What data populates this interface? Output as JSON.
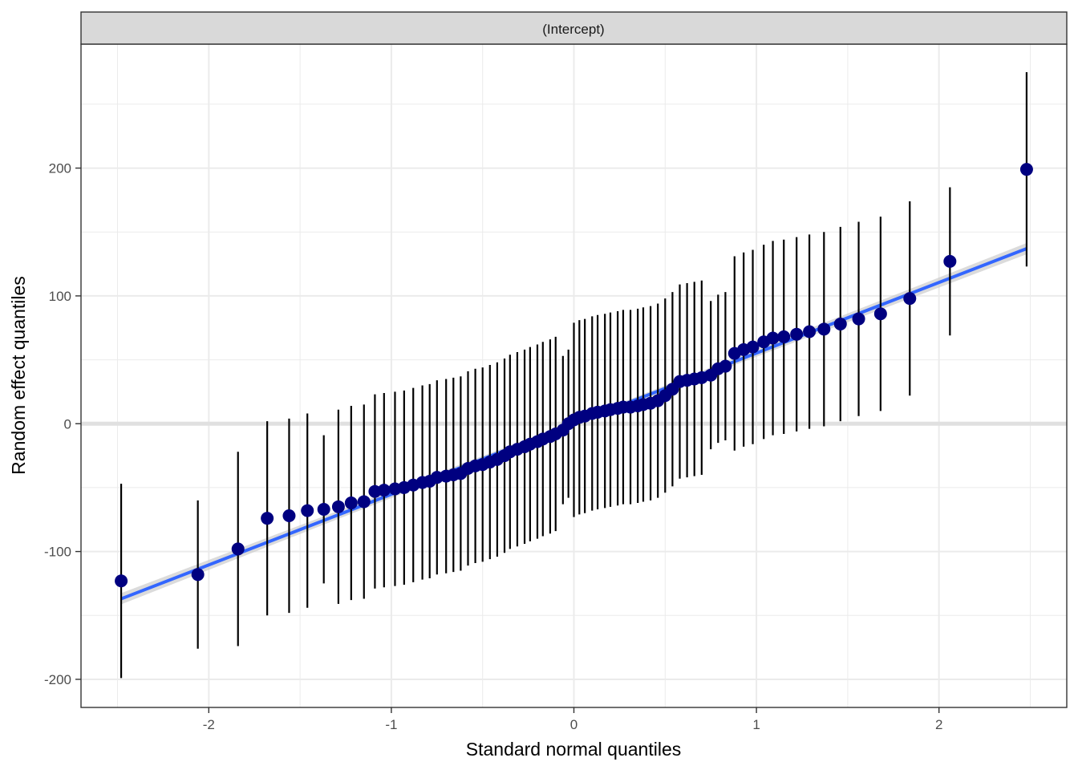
{
  "chart_data": {
    "type": "scatter",
    "facet_label": "(Intercept)",
    "xlabel": "Standard normal quantiles",
    "ylabel": "Random effect quantiles",
    "xlim": [
      -2.7,
      2.7
    ],
    "ylim": [
      -222,
      297
    ],
    "x_ticks": [
      -2,
      -1,
      0,
      1,
      2
    ],
    "x_tick_labels": [
      "-2",
      "-1",
      "0",
      "1",
      "2"
    ],
    "y_ticks": [
      -200,
      -100,
      0,
      100,
      200
    ],
    "y_tick_labels": [
      "-200",
      "-100",
      "0",
      "100",
      "200"
    ],
    "grid": true,
    "reference_hline": 0,
    "fit_line": {
      "x": [
        -2.48,
        2.48
      ],
      "y": [
        -137,
        137
      ]
    },
    "colors": {
      "points": "#000080",
      "fit": "#3366FF",
      "band": "#CCCCCC",
      "bars": "#000000",
      "strip": "#D9D9D9"
    },
    "series": [
      {
        "x": [
          -2.48,
          -2.06,
          -1.84,
          -1.68,
          -1.56,
          -1.46,
          -1.37,
          -1.29,
          -1.22,
          -1.15,
          -1.09,
          -1.04,
          -0.98,
          -0.93,
          -0.88,
          -0.83,
          -0.79,
          -0.75,
          -0.7,
          -0.66,
          -0.62,
          -0.58,
          -0.54,
          -0.5,
          -0.46,
          -0.42,
          -0.38,
          -0.35,
          -0.31,
          -0.27,
          -0.24,
          -0.2,
          -0.17,
          -0.13,
          -0.1,
          -0.06,
          -0.03,
          0.0,
          0.03,
          0.06,
          0.1,
          0.13,
          0.17,
          0.2,
          0.24,
          0.27,
          0.31,
          0.35,
          0.38,
          0.42,
          0.46,
          0.5,
          0.54,
          0.58,
          0.62,
          0.66,
          0.7,
          0.75,
          0.79,
          0.83,
          0.88,
          0.93,
          0.98,
          1.04,
          1.09,
          1.15,
          1.22,
          1.29,
          1.37,
          1.46,
          1.56,
          1.68,
          1.84,
          2.06,
          2.48
        ],
        "y": [
          -123,
          -118,
          -98,
          -74,
          -72,
          -68,
          -67,
          -65,
          -62,
          -61,
          -53,
          -52,
          -51,
          -50,
          -48,
          -46,
          -45,
          -42,
          -41,
          -40,
          -39,
          -35,
          -33,
          -32,
          -30,
          -28,
          -25,
          -22,
          -20,
          -18,
          -16,
          -14,
          -12,
          -10,
          -8,
          -5,
          0,
          3,
          5,
          6,
          8,
          9,
          10,
          11,
          12,
          13,
          13,
          14,
          15,
          16,
          18,
          22,
          27,
          33,
          34,
          35,
          36,
          38,
          43,
          45,
          55,
          58,
          60,
          64,
          67,
          68,
          70,
          72,
          74,
          78,
          82,
          86,
          98,
          127,
          199
        ],
        "err": [
          76,
          58,
          76,
          76,
          76,
          76,
          58,
          76,
          76,
          76,
          76,
          76,
          76,
          76,
          76,
          76,
          76,
          76,
          76,
          76,
          76,
          76,
          76,
          76,
          76,
          76,
          76,
          76,
          76,
          76,
          76,
          76,
          76,
          76,
          76,
          58,
          58,
          76,
          76,
          76,
          76,
          76,
          76,
          76,
          76,
          76,
          76,
          76,
          76,
          76,
          76,
          76,
          76,
          76,
          76,
          76,
          76,
          58,
          58,
          58,
          76,
          76,
          76,
          76,
          76,
          76,
          76,
          76,
          76,
          76,
          76,
          76,
          76,
          58,
          76
        ]
      }
    ]
  }
}
